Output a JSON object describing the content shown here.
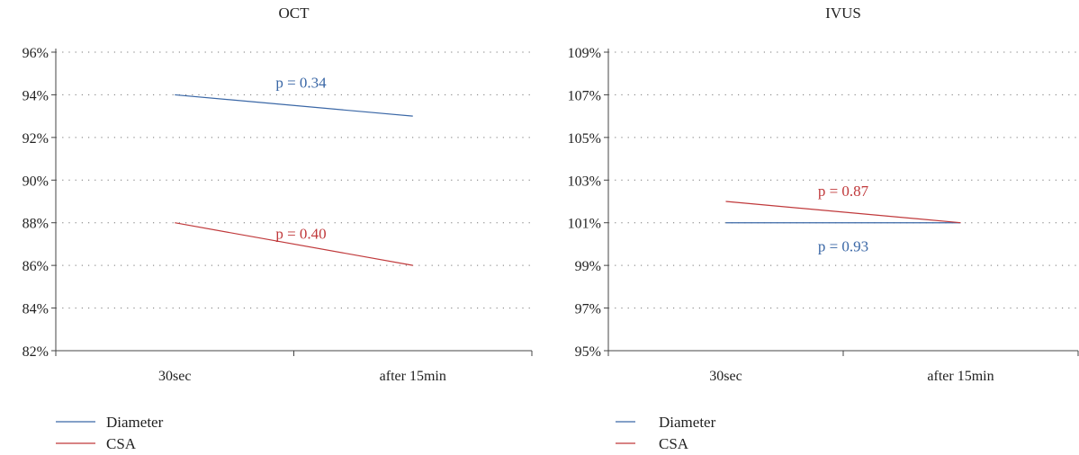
{
  "chart_data": [
    {
      "type": "line",
      "title": "OCT",
      "categories": [
        "30sec",
        "after 15min"
      ],
      "yticks": [
        "82%",
        "84%",
        "86%",
        "88%",
        "90%",
        "92%",
        "94%",
        "96%"
      ],
      "ylim": [
        82,
        96
      ],
      "grid": true,
      "legend_position": "bottom-left",
      "series": [
        {
          "name": "Diameter",
          "values": [
            94,
            93
          ],
          "color": "#3a67a6"
        },
        {
          "name": "CSA",
          "values": [
            88,
            86
          ],
          "color": "#c0393b"
        }
      ],
      "annotations": [
        {
          "text": "p = 0.34",
          "series": "Diameter",
          "color": "#3a67a6"
        },
        {
          "text": "p = 0.40",
          "series": "CSA",
          "color": "#c0393b"
        }
      ]
    },
    {
      "type": "line",
      "title": "IVUS",
      "categories": [
        "30sec",
        "after 15min"
      ],
      "yticks": [
        "95%",
        "97%",
        "99%",
        "101%",
        "103%",
        "105%",
        "107%",
        "109%"
      ],
      "ylim": [
        95,
        109
      ],
      "grid": true,
      "legend_position": "bottom-left",
      "series": [
        {
          "name": "Diameter",
          "values": [
            101,
            101
          ],
          "color": "#3a67a6"
        },
        {
          "name": "CSA",
          "values": [
            102,
            101
          ],
          "color": "#c0393b"
        }
      ],
      "annotations": [
        {
          "text": "p = 0.87",
          "series": "CSA",
          "color": "#c0393b"
        },
        {
          "text": "p = 0.93",
          "series": "Diameter",
          "color": "#3a67a6"
        }
      ]
    }
  ]
}
